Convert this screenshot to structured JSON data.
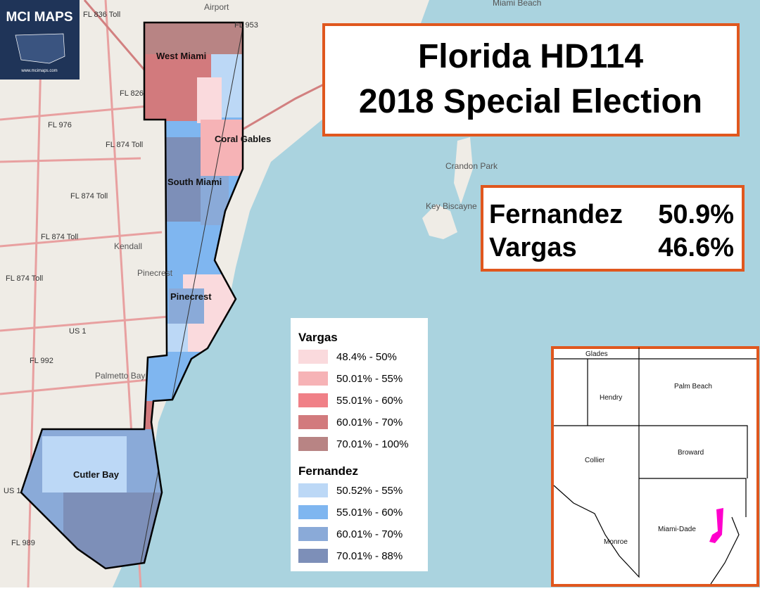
{
  "logo": {
    "title": "MCI MAPS",
    "url": "www.mcimaps.com"
  },
  "title": {
    "line1": "Florida HD114",
    "line2": "2018 Special Election"
  },
  "results": [
    {
      "candidate": "Fernandez",
      "share": "50.9%"
    },
    {
      "candidate": "Vargas",
      "share": "46.6%"
    }
  ],
  "legend": {
    "groups": [
      {
        "name": "Vargas",
        "items": [
          {
            "label": "48.4% - 50%",
            "color": "#fadadd"
          },
          {
            "label": "50.01% - 55%",
            "color": "#f6b3b6"
          },
          {
            "label": "55.01% - 60%",
            "color": "#f08087"
          },
          {
            "label": "60.01% - 70%",
            "color": "#d27a7d"
          },
          {
            "label": "70.01% - 100%",
            "color": "#b88484"
          }
        ]
      },
      {
        "name": "Fernandez",
        "items": [
          {
            "label": "50.52% - 55%",
            "color": "#bcd8f6"
          },
          {
            "label": "55.01% - 60%",
            "color": "#7fb6f0"
          },
          {
            "label": "60.01% - 70%",
            "color": "#8aaad8"
          },
          {
            "label": "70.01% - 88%",
            "color": "#7d8fb8"
          }
        ]
      }
    ]
  },
  "district_labels": [
    "West Miami",
    "Coral Gables",
    "South Miami",
    "Pinecrest",
    "Cutler Bay"
  ],
  "place_labels": [
    "Kendall",
    "Pinecrest",
    "Palmetto Bay",
    "Key Biscayne",
    "Crandon Park",
    "Airport",
    "Miami Beach"
  ],
  "road_labels": [
    "FL 836 Toll",
    "FL 826",
    "FL 976",
    "FL 874 Toll",
    "FL 874 Toll",
    "FL 874 Toll",
    "FL 874 Toll",
    "US 1",
    "FL 992",
    "FL 989",
    "FL 953",
    "US 1"
  ],
  "inset": {
    "counties": [
      "Glades",
      "Hendry",
      "Palm Beach",
      "Collier",
      "Broward",
      "Miami-Dade",
      "Monroe"
    ]
  }
}
